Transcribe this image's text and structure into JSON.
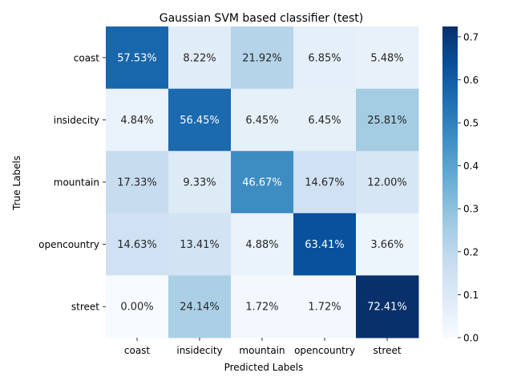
{
  "chart_data": {
    "type": "heatmap",
    "title": "Gaussian SVM based classifier (test)",
    "xlabel": "Predicted Labels",
    "ylabel": "True Labels",
    "x_categories": [
      "coast",
      "insidecity",
      "mountain",
      "opencountry",
      "street"
    ],
    "y_categories": [
      "coast",
      "insidecity",
      "mountain",
      "opencountry",
      "street"
    ],
    "values": [
      [
        0.5753,
        0.0822,
        0.2192,
        0.0685,
        0.0548
      ],
      [
        0.0484,
        0.5645,
        0.0645,
        0.0645,
        0.2581
      ],
      [
        0.1733,
        0.0933,
        0.4667,
        0.1467,
        0.12
      ],
      [
        0.1463,
        0.1341,
        0.0488,
        0.6341,
        0.0366
      ],
      [
        0.0,
        0.2414,
        0.0172,
        0.0172,
        0.7241
      ]
    ],
    "cell_labels": [
      [
        "57.53%",
        "8.22%",
        "21.92%",
        "6.85%",
        "5.48%"
      ],
      [
        "4.84%",
        "56.45%",
        "6.45%",
        "6.45%",
        "25.81%"
      ],
      [
        "17.33%",
        "9.33%",
        "46.67%",
        "14.67%",
        "12.00%"
      ],
      [
        "14.63%",
        "13.41%",
        "4.88%",
        "63.41%",
        "3.66%"
      ],
      [
        "0.00%",
        "24.14%",
        "1.72%",
        "1.72%",
        "72.41%"
      ]
    ],
    "colorbar": {
      "colormap": "Blues",
      "range": [
        0.0,
        0.7241
      ],
      "ticks": [
        0.0,
        0.1,
        0.2,
        0.3,
        0.4,
        0.5,
        0.6,
        0.7
      ],
      "tick_labels": [
        "0.0",
        "0.1",
        "0.2",
        "0.3",
        "0.4",
        "0.5",
        "0.6",
        "0.7"
      ]
    }
  }
}
